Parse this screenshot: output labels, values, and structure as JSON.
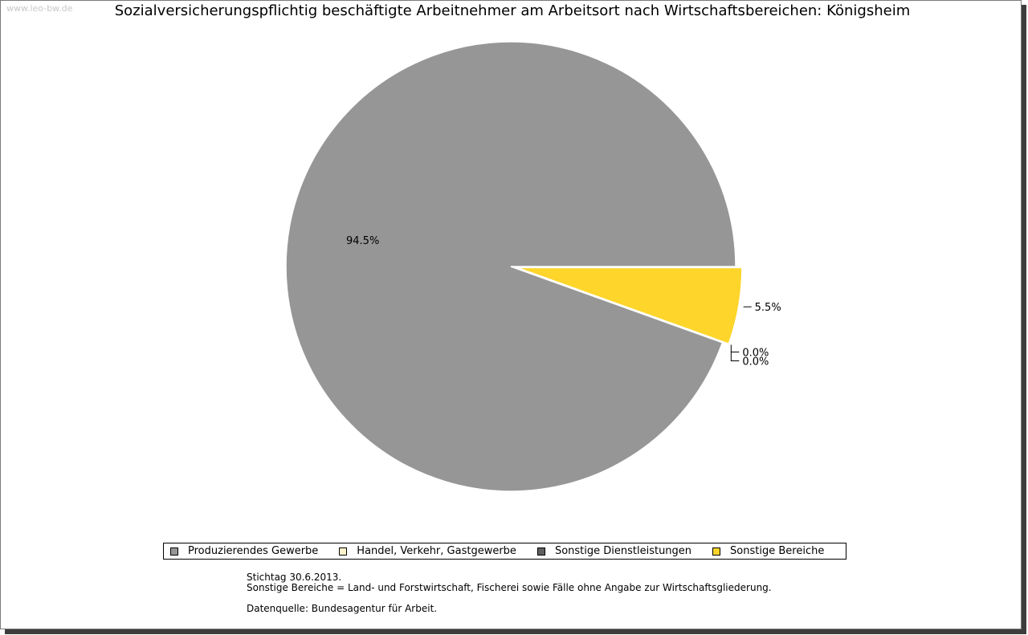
{
  "watermark": "www.leo-bw.de",
  "chart_data": {
    "type": "pie",
    "title": "Sozialversicherungspflichtig beschäftigte Arbeitnehmer am Arbeitsort nach Wirtschaftsbereichen: Königsheim",
    "slices": [
      {
        "name": "Produzierendes Gewerbe",
        "value": 94.5,
        "label": "94.5%",
        "color": "#969696",
        "exploded": false
      },
      {
        "name": "Handel, Verkehr, Gastgewerbe",
        "value": 0.0,
        "label": "0.0%",
        "color": "#fff2cc",
        "exploded": false
      },
      {
        "name": "Sonstige Dienstleistungen",
        "value": 0.0,
        "label": "0.0%",
        "color": "#606060",
        "exploded": false
      },
      {
        "name": "Sonstige Bereiche",
        "value": 5.5,
        "label": "5.5%",
        "color": "#fdd52b",
        "exploded": true
      }
    ],
    "legend_placement": "bottom"
  },
  "notes": {
    "line1": "Stichtag 30.6.2013.",
    "line2": "Sonstige Bereiche = Land- und Forstwirtschaft, Fischerei sowie Fälle ohne Angabe zur Wirtschaftsgliederung.",
    "line3": "Datenquelle: Bundesagentur für Arbeit."
  }
}
